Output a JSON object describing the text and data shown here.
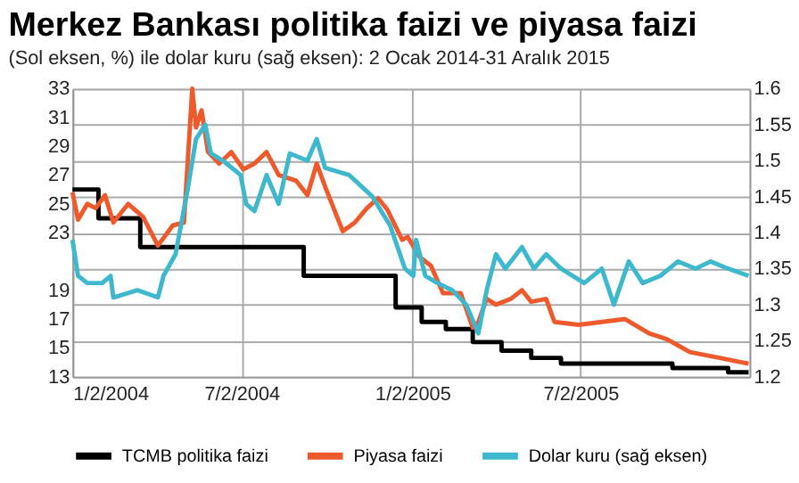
{
  "chart_data": {
    "type": "line",
    "title": "Merkez Bankası politika faizi ve piyasa faizi",
    "subtitle": "(Sol eksen, %) ile dolar kuru (sağ eksen): 2 Ocak 2014-31 Aralık 2015",
    "xlim": [
      "2004-01-02",
      "2005-12-31"
    ],
    "xticks": [
      {
        "value": "2004-01-02",
        "label": "1/2/2004"
      },
      {
        "value": "2004-07-02",
        "label": "7/2/2004"
      },
      {
        "value": "2005-01-02",
        "label": "1/2/2005"
      },
      {
        "value": "2005-07-02",
        "label": "7/2/2005"
      }
    ],
    "ylim": [
      13,
      33
    ],
    "yticks": [
      13,
      15,
      17,
      19,
      23,
      25,
      27,
      29,
      31,
      33
    ],
    "y2lim": [
      1.2,
      1.6
    ],
    "y2ticks": [
      1.2,
      1.25,
      1.3,
      1.35,
      1.4,
      1.45,
      1.5,
      1.55,
      1.6
    ],
    "grid": true,
    "legend": "bottom",
    "series": [
      {
        "name": "TCMB politika faizi",
        "color": "#000000",
        "type": "step",
        "x": [
          "2004-01-02",
          "2004-01-30",
          "2004-03-15",
          "2004-09-07",
          "2004-12-15",
          "2005-01-12",
          "2005-02-07",
          "2005-03-08",
          "2005-04-08",
          "2005-05-10",
          "2005-06-11",
          "2005-10-09",
          "2005-12-08",
          "2005-12-30"
        ],
        "values": [
          26.0,
          24.0,
          22.0,
          20.0,
          17.8,
          16.8,
          16.3,
          15.4,
          14.8,
          14.3,
          13.9,
          13.6,
          13.3,
          13.3
        ]
      },
      {
        "name": "Piyasa faizi",
        "color": "#ee5a2c",
        "type": "line",
        "x": [
          "2004-01-02",
          "2004-01-08",
          "2004-01-18",
          "2004-01-27",
          "2004-02-06",
          "2004-02-15",
          "2004-03-02",
          "2004-03-18",
          "2004-04-03",
          "2004-04-19",
          "2004-05-01",
          "2004-05-10",
          "2004-05-14",
          "2004-05-20",
          "2004-05-27",
          "2004-06-08",
          "2004-06-21",
          "2004-07-04",
          "2004-07-16",
          "2004-07-29",
          "2004-08-11",
          "2004-08-30",
          "2004-09-11",
          "2004-09-21",
          "2004-09-30",
          "2004-10-19",
          "2004-11-01",
          "2004-11-14",
          "2004-11-26",
          "2004-12-06",
          "2004-12-22",
          "2004-12-28",
          "2005-01-10",
          "2005-01-22",
          "2005-02-04",
          "2005-02-23",
          "2005-03-08",
          "2005-03-14",
          "2005-03-23",
          "2005-04-02",
          "2005-04-18",
          "2005-04-30",
          "2005-05-10",
          "2005-05-26",
          "2005-06-04",
          "2005-06-30",
          "2005-07-25",
          "2005-08-19",
          "2005-09-14",
          "2005-10-03",
          "2005-10-28",
          "2005-11-29",
          "2005-12-30"
        ],
        "values": [
          25.8,
          23.9,
          25.0,
          24.7,
          25.6,
          23.7,
          25.0,
          24.1,
          22.1,
          23.5,
          23.7,
          33.0,
          30.3,
          31.5,
          28.6,
          27.8,
          28.6,
          27.4,
          27.8,
          28.6,
          27.0,
          26.6,
          25.6,
          27.8,
          26.2,
          23.1,
          23.7,
          24.7,
          25.4,
          24.6,
          22.5,
          22.7,
          21.3,
          20.7,
          18.8,
          18.8,
          16.4,
          16.8,
          18.4,
          18.0,
          18.4,
          19.0,
          18.2,
          18.4,
          16.8,
          16.6,
          16.8,
          17.0,
          16.0,
          15.6,
          14.7,
          14.3,
          13.9
        ]
      },
      {
        "name": "Dolar kuru (sağ eksen)",
        "color": "#3db8cc",
        "type": "line",
        "axis": "y2",
        "x": [
          "2004-01-02",
          "2004-01-08",
          "2004-01-18",
          "2004-02-03",
          "2004-02-12",
          "2004-02-15",
          "2004-03-12",
          "2004-04-03",
          "2004-04-09",
          "2004-04-22",
          "2004-05-05",
          "2004-05-14",
          "2004-05-24",
          "2004-05-30",
          "2004-06-12",
          "2004-07-01",
          "2004-07-07",
          "2004-07-16",
          "2004-07-29",
          "2004-08-11",
          "2004-08-23",
          "2004-09-11",
          "2004-09-21",
          "2004-09-30",
          "2004-10-26",
          "2004-11-20",
          "2004-12-09",
          "2004-12-25",
          "2005-01-03",
          "2005-01-06",
          "2005-01-16",
          "2005-01-29",
          "2005-02-14",
          "2005-03-01",
          "2005-03-14",
          "2005-03-23",
          "2005-04-02",
          "2005-04-12",
          "2005-04-30",
          "2005-05-13",
          "2005-05-26",
          "2005-06-11",
          "2005-07-06",
          "2005-07-25",
          "2005-08-07",
          "2005-08-23",
          "2005-09-07",
          "2005-09-26",
          "2005-10-15",
          "2005-11-03",
          "2005-11-19",
          "2005-12-08",
          "2005-12-30"
        ],
        "values": [
          1.39,
          1.34,
          1.33,
          1.33,
          1.34,
          1.31,
          1.32,
          1.31,
          1.34,
          1.37,
          1.46,
          1.53,
          1.55,
          1.51,
          1.5,
          1.48,
          1.44,
          1.43,
          1.48,
          1.44,
          1.51,
          1.5,
          1.53,
          1.49,
          1.48,
          1.45,
          1.41,
          1.35,
          1.34,
          1.39,
          1.34,
          1.33,
          1.32,
          1.3,
          1.26,
          1.32,
          1.37,
          1.35,
          1.38,
          1.35,
          1.37,
          1.35,
          1.33,
          1.35,
          1.3,
          1.36,
          1.33,
          1.34,
          1.36,
          1.35,
          1.36,
          1.35,
          1.34
        ]
      }
    ]
  }
}
